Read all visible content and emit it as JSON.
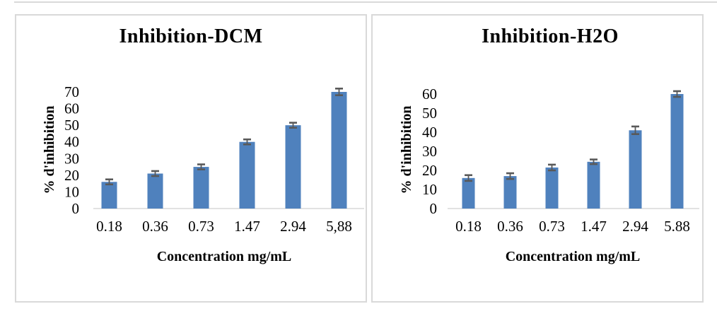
{
  "page": {
    "background": "#ffffff",
    "panel_border_color": "#d9d9d9",
    "top_rule_color": "#d9d9d9"
  },
  "chart_data": [
    {
      "type": "bar",
      "title": "Inhibition-DCM",
      "xlabel": "Concentration mg/mL",
      "ylabel": "% d'inhibition",
      "categories": [
        "0.18",
        "0.36",
        "0.73",
        "1.47",
        "2.94",
        "5,88"
      ],
      "values": [
        16,
        21,
        25,
        40,
        50,
        70
      ],
      "errors": [
        1.5,
        1.5,
        1.5,
        1.5,
        1.5,
        2
      ],
      "yticks": [
        0,
        10,
        20,
        30,
        40,
        50,
        60,
        70
      ],
      "ylim": [
        0,
        70
      ],
      "grid": false,
      "legend": "none",
      "bar_color": "#4f81bd",
      "error_color": "#595959",
      "axis_color": "#d9d9d9",
      "text_color": "#000000"
    },
    {
      "type": "bar",
      "title": "Inhibition-H2O",
      "xlabel": "Concentration mg/mL",
      "ylabel": "% d'inhibition",
      "categories": [
        "0.18",
        "0.36",
        "0.73",
        "1.47",
        "2.94",
        "5.88"
      ],
      "values": [
        16,
        17,
        21.5,
        24.5,
        41,
        60
      ],
      "errors": [
        1.5,
        1.5,
        1.5,
        1.2,
        2,
        1.5
      ],
      "yticks": [
        0,
        10,
        20,
        30,
        40,
        50,
        60
      ],
      "ylim": [
        0,
        60
      ],
      "grid": false,
      "legend": "none",
      "bar_color": "#4f81bd",
      "error_color": "#595959",
      "axis_color": "#d9d9d9",
      "text_color": "#000000"
    }
  ]
}
